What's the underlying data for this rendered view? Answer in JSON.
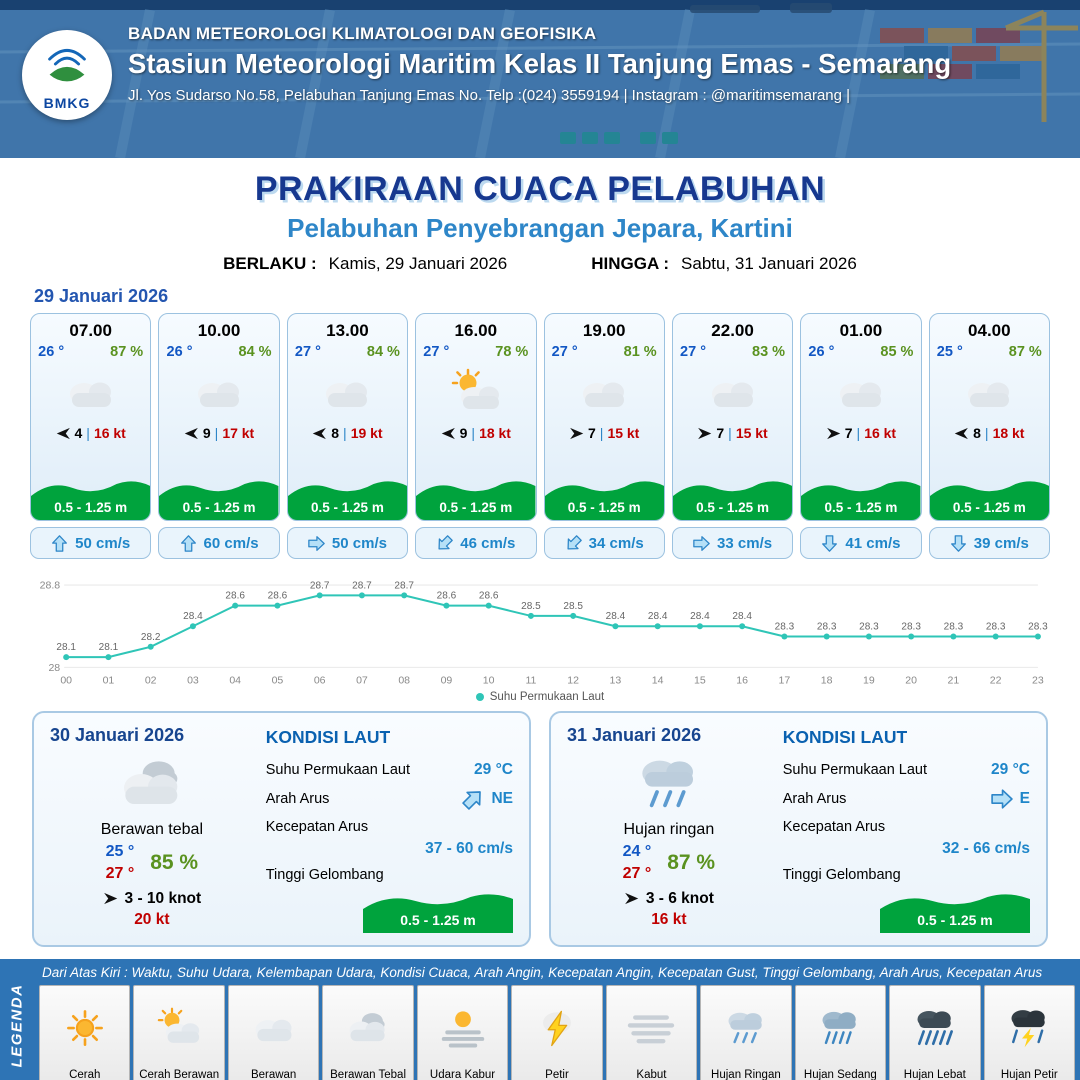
{
  "colors": {
    "header_blue": "#3f77ad",
    "title_navy": "#17388f",
    "subtitle_blue": "#2e86c8",
    "temp_blue": "#1257c4",
    "humidity_green": "#5a9220",
    "gust_red": "#c00000",
    "wave_green": "#00a33d",
    "current_blue": "#1f86c9",
    "chart_teal": "#2fc5b7",
    "legend_blue": "#2e74b5"
  },
  "header": {
    "logo_text": "BMKG",
    "agency": "BADAN METEOROLOGI KLIMATOLOGI DAN GEOFISIKA",
    "station": "Stasiun Meteorologi Maritim Kelas II Tanjung Emas - Semarang",
    "address": "Jl. Yos Sudarso No.58, Pelabuhan Tanjung Emas No. Telp :(024) 3559194 | Instagram : @maritimsemarang |"
  },
  "title": {
    "main": "PRAKIRAAN CUACA PELABUHAN",
    "subtitle": "Pelabuhan Penyebrangan Jepara, Kartini",
    "berlaku_label": "BERLAKU :",
    "berlaku_value": "Kamis, 29 Januari 2026",
    "hingga_label": "HINGGA :",
    "hingga_value": "Sabtu, 31 Januari 2026"
  },
  "forecast_date": "29 Januari 2026",
  "wind_sep": "|",
  "hourly": [
    {
      "time": "07.00",
      "temp": "26 °",
      "rh": "87 %",
      "icon": "cloudy",
      "wind_arrow_deg": 180,
      "wind": "4",
      "gust": "16 kt",
      "wave": "0.5 - 1.25 m",
      "current_arrow_deg": 0,
      "current": "50 cm/s"
    },
    {
      "time": "10.00",
      "temp": "26 °",
      "rh": "84 %",
      "icon": "cloudy",
      "wind_arrow_deg": 180,
      "wind": "9",
      "gust": "17 kt",
      "wave": "0.5 - 1.25 m",
      "current_arrow_deg": 0,
      "current": "60 cm/s"
    },
    {
      "time": "13.00",
      "temp": "27 °",
      "rh": "84 %",
      "icon": "cloudy",
      "wind_arrow_deg": 180,
      "wind": "8",
      "gust": "19 kt",
      "wave": "0.5 - 1.25 m",
      "current_arrow_deg": 90,
      "current": "50 cm/s"
    },
    {
      "time": "16.00",
      "temp": "27 °",
      "rh": "78 %",
      "icon": "sun-cloud",
      "wind_arrow_deg": 180,
      "wind": "9",
      "gust": "18 kt",
      "wave": "0.5 - 1.25 m",
      "current_arrow_deg": 225,
      "current": "46 cm/s"
    },
    {
      "time": "19.00",
      "temp": "27 °",
      "rh": "81 %",
      "icon": "cloudy",
      "wind_arrow_deg": 0,
      "wind": "7",
      "gust": "15 kt",
      "wave": "0.5 - 1.25 m",
      "current_arrow_deg": 225,
      "current": "34 cm/s"
    },
    {
      "time": "22.00",
      "temp": "27 °",
      "rh": "83 %",
      "icon": "cloudy",
      "wind_arrow_deg": 0,
      "wind": "7",
      "gust": "15 kt",
      "wave": "0.5 - 1.25 m",
      "current_arrow_deg": 90,
      "current": "33 cm/s"
    },
    {
      "time": "01.00",
      "temp": "26 °",
      "rh": "85 %",
      "icon": "cloudy",
      "wind_arrow_deg": 0,
      "wind": "7",
      "gust": "16 kt",
      "wave": "0.5 - 1.25 m",
      "current_arrow_deg": 180,
      "current": "41 cm/s"
    },
    {
      "time": "04.00",
      "temp": "25 °",
      "rh": "87 %",
      "icon": "cloudy",
      "wind_arrow_deg": 180,
      "wind": "8",
      "gust": "18 kt",
      "wave": "0.5 - 1.25 m",
      "current_arrow_deg": 180,
      "current": "39 cm/s"
    }
  ],
  "chart_data": {
    "type": "line",
    "x": [
      "00",
      "01",
      "02",
      "03",
      "04",
      "05",
      "06",
      "07",
      "08",
      "09",
      "10",
      "11",
      "12",
      "13",
      "14",
      "15",
      "16",
      "17",
      "18",
      "19",
      "20",
      "21",
      "22",
      "23"
    ],
    "series": [
      {
        "name": "Suhu Permukaan Laut",
        "values": [
          28.1,
          28.1,
          28.2,
          28.4,
          28.6,
          28.6,
          28.7,
          28.7,
          28.7,
          28.6,
          28.6,
          28.5,
          28.5,
          28.4,
          28.4,
          28.4,
          28.4,
          28.3,
          28.3,
          28.3,
          28.3,
          28.3,
          28.3,
          28.3
        ]
      }
    ],
    "ylim": [
      28,
      28.8
    ],
    "yticks": [
      28,
      28.8
    ],
    "line_color": "#2fc5b7",
    "grid": false,
    "legend_position": "bottom"
  },
  "daily": [
    {
      "date": "30 Januari 2026",
      "icon": "cloudy-thick",
      "condition": "Berawan tebal",
      "temp_min": "25 °",
      "temp_max": "27 °",
      "rh": "85 %",
      "wind_arrow_deg": 0,
      "wind": "3 - 10 knot",
      "gust": "20 kt",
      "sea": {
        "title": "KONDISI LAUT",
        "sst_label": "Suhu Permukaan Laut",
        "sst": "29 °C",
        "dir_label": "Arah Arus",
        "dir_arrow_deg": 45,
        "dir": "NE",
        "speed_label": "Kecepatan Arus",
        "speed": "37 - 60 cm/s",
        "wave_label": "Tinggi Gelombang",
        "wave": "0.5 - 1.25 m"
      }
    },
    {
      "date": "31 Januari 2026",
      "icon": "rain-light",
      "condition": "Hujan ringan",
      "temp_min": "24 °",
      "temp_max": "27 °",
      "rh": "87 %",
      "wind_arrow_deg": 0,
      "wind": "3 - 6 knot",
      "gust": "16 kt",
      "sea": {
        "title": "KONDISI LAUT",
        "sst_label": "Suhu Permukaan Laut",
        "sst": "29 °C",
        "dir_label": "Arah Arus",
        "dir_arrow_deg": 90,
        "dir": "E",
        "speed_label": "Kecepatan Arus",
        "speed": "32 - 66 cm/s",
        "wave_label": "Tinggi Gelombang",
        "wave": "0.5 - 1.25 m"
      }
    }
  ],
  "legend_bar": {
    "vertical_label": "LEGENDA",
    "note": "Dari Atas Kiri : Waktu, Suhu Udara, Kelembapan Udara, Kondisi Cuaca, Arah Angin, Kecepatan Angin, Kecepatan Gust, Tinggi Gelombang, Arah Arus, Kecepatan Arus",
    "items": [
      {
        "label": "Cerah",
        "icon": "sun"
      },
      {
        "label": "Cerah Berawan",
        "icon": "sun-cloud"
      },
      {
        "label": "Berawan",
        "icon": "cloudy"
      },
      {
        "label": "Berawan Tebal",
        "icon": "cloudy-thick"
      },
      {
        "label": "Udara Kabur",
        "icon": "haze"
      },
      {
        "label": "Petir",
        "icon": "thunder"
      },
      {
        "label": "Kabut",
        "icon": "fog"
      },
      {
        "label": "Hujan Ringan",
        "icon": "rain-light"
      },
      {
        "label": "Hujan Sedang",
        "icon": "rain-medium"
      },
      {
        "label": "Hujan Lebat",
        "icon": "rain-heavy"
      },
      {
        "label": "Hujan Petir",
        "icon": "rain-thunder"
      }
    ]
  }
}
